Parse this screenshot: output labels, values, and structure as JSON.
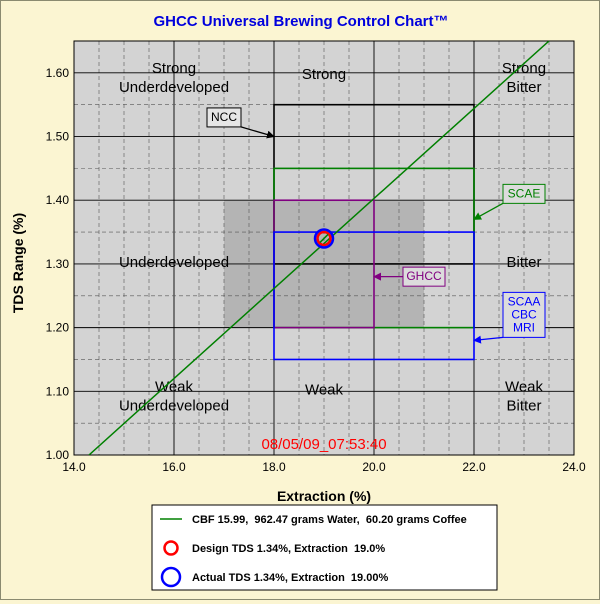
{
  "chart_data": {
    "type": "line",
    "title": "GHCC Universal Brewing Control Chart™",
    "xlabel": "Extraction (%)",
    "ylabel": "TDS Range (%)",
    "xlim": [
      14.0,
      24.0
    ],
    "ylim": [
      1.0,
      1.65
    ],
    "x_ticks": [
      "14.0",
      "16.0",
      "18.0",
      "20.0",
      "22.0",
      "24.0"
    ],
    "y_ticks": [
      "1.00",
      "1.10",
      "1.20",
      "1.30",
      "1.40",
      "1.50",
      "1.60"
    ],
    "grid": true,
    "timestamp": "08/05/09_07:53:40",
    "regions": [
      {
        "label": "Strong\nUnderdeveloped",
        "x": 16.0,
        "y": 1.6
      },
      {
        "label": "Strong",
        "x": 19.0,
        "y": 1.59
      },
      {
        "label": "Strong\nBitter",
        "x": 23.0,
        "y": 1.6
      },
      {
        "label": "Underdeveloped",
        "x": 16.0,
        "y": 1.295
      },
      {
        "label": "Bitter",
        "x": 23.0,
        "y": 1.295
      },
      {
        "label": "Weak\nUnderdeveloped",
        "x": 16.0,
        "y": 1.1
      },
      {
        "label": "Weak",
        "x": 19.0,
        "y": 1.095
      },
      {
        "label": "Weak\nBitter",
        "x": 23.0,
        "y": 1.1
      }
    ],
    "shaded_region": {
      "x": [
        17.0,
        21.0
      ],
      "y": [
        1.2,
        1.4
      ]
    },
    "standards": [
      {
        "name": "NCC",
        "x": [
          18.0,
          22.0
        ],
        "y": [
          1.3,
          1.55
        ],
        "color": "#000000",
        "label_x": 17.0,
        "label_y": 1.53,
        "arrow_to": [
          18.0,
          1.5
        ]
      },
      {
        "name": "SCAE",
        "x": [
          18.0,
          22.0
        ],
        "y": [
          1.2,
          1.45
        ],
        "color": "#008000",
        "label_x": 23.0,
        "label_y": 1.41,
        "arrow_to": [
          22.0,
          1.37
        ]
      },
      {
        "name": "GHCC",
        "x": [
          18.0,
          20.0
        ],
        "y": [
          1.2,
          1.4
        ],
        "color": "#800080",
        "label_x": 21.0,
        "label_y": 1.28,
        "arrow_to": [
          20.0,
          1.28
        ]
      },
      {
        "name": "SCAA\nCBC\nMRI",
        "x": [
          18.0,
          22.0
        ],
        "y": [
          1.15,
          1.35
        ],
        "color": "#0000ff",
        "label_x": 23.0,
        "label_y": 1.22,
        "arrow_to": [
          22.0,
          1.18
        ]
      }
    ],
    "series": [
      {
        "name": "CBF 15.99,  962.47 grams Water,  60.20 grams Coffee",
        "type": "line",
        "color": "#008000",
        "x": [
          14.3,
          23.5
        ],
        "y": [
          1.0,
          1.65
        ]
      },
      {
        "name": "Design TDS 1.34%, Extraction  19.0%",
        "type": "point",
        "color": "#ff0000",
        "x": [
          19.0
        ],
        "y": [
          1.34
        ]
      },
      {
        "name": "Actual TDS 1.34%, Extraction  19.00%",
        "type": "point",
        "color": "#0000ff",
        "x": [
          19.0
        ],
        "y": [
          1.34
        ]
      }
    ]
  }
}
